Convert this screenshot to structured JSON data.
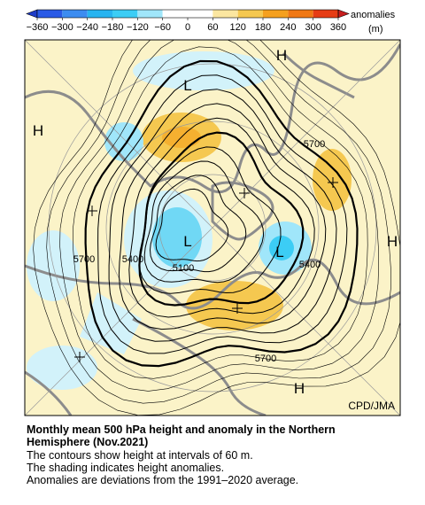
{
  "colorbar": {
    "ticks": [
      {
        "value": -360,
        "label": "−360"
      },
      {
        "value": -300,
        "label": "−300"
      },
      {
        "value": -240,
        "label": "−240"
      },
      {
        "value": -180,
        "label": "−180"
      },
      {
        "value": -120,
        "label": "−120"
      },
      {
        "value": -60,
        "label": "−60"
      },
      0,
      60,
      120,
      180,
      240,
      300,
      360
    ],
    "colors": [
      "#1e3cc8",
      "#2a5ae6",
      "#3c8cf0",
      "#28b4f0",
      "#3ccdf5",
      "#a0e6fa",
      "#ffffff",
      "#ffffff",
      "#fbe6a0",
      "#f5c850",
      "#f5a01e",
      "#f07814",
      "#e63c14",
      "#c81e1e"
    ],
    "title": "anomalies",
    "unit": "(m)"
  },
  "map": {
    "labels": [
      "H",
      "H",
      "H",
      "H",
      "L",
      "L",
      "L",
      "5700",
      "5700",
      "5700",
      "5400",
      "5400",
      "5100"
    ],
    "credit": "CPD/JMA"
  },
  "caption": {
    "title_lines": [
      "Monthly mean 500 hPa height and anomaly in the Northern",
      "Hemisphere (Nov.2021)"
    ],
    "notes": [
      "The contours show height at intervals of 60 m.",
      "The shading indicates height anomalies.",
      "Anomalies are deviations from the 1991–2020 average."
    ]
  }
}
